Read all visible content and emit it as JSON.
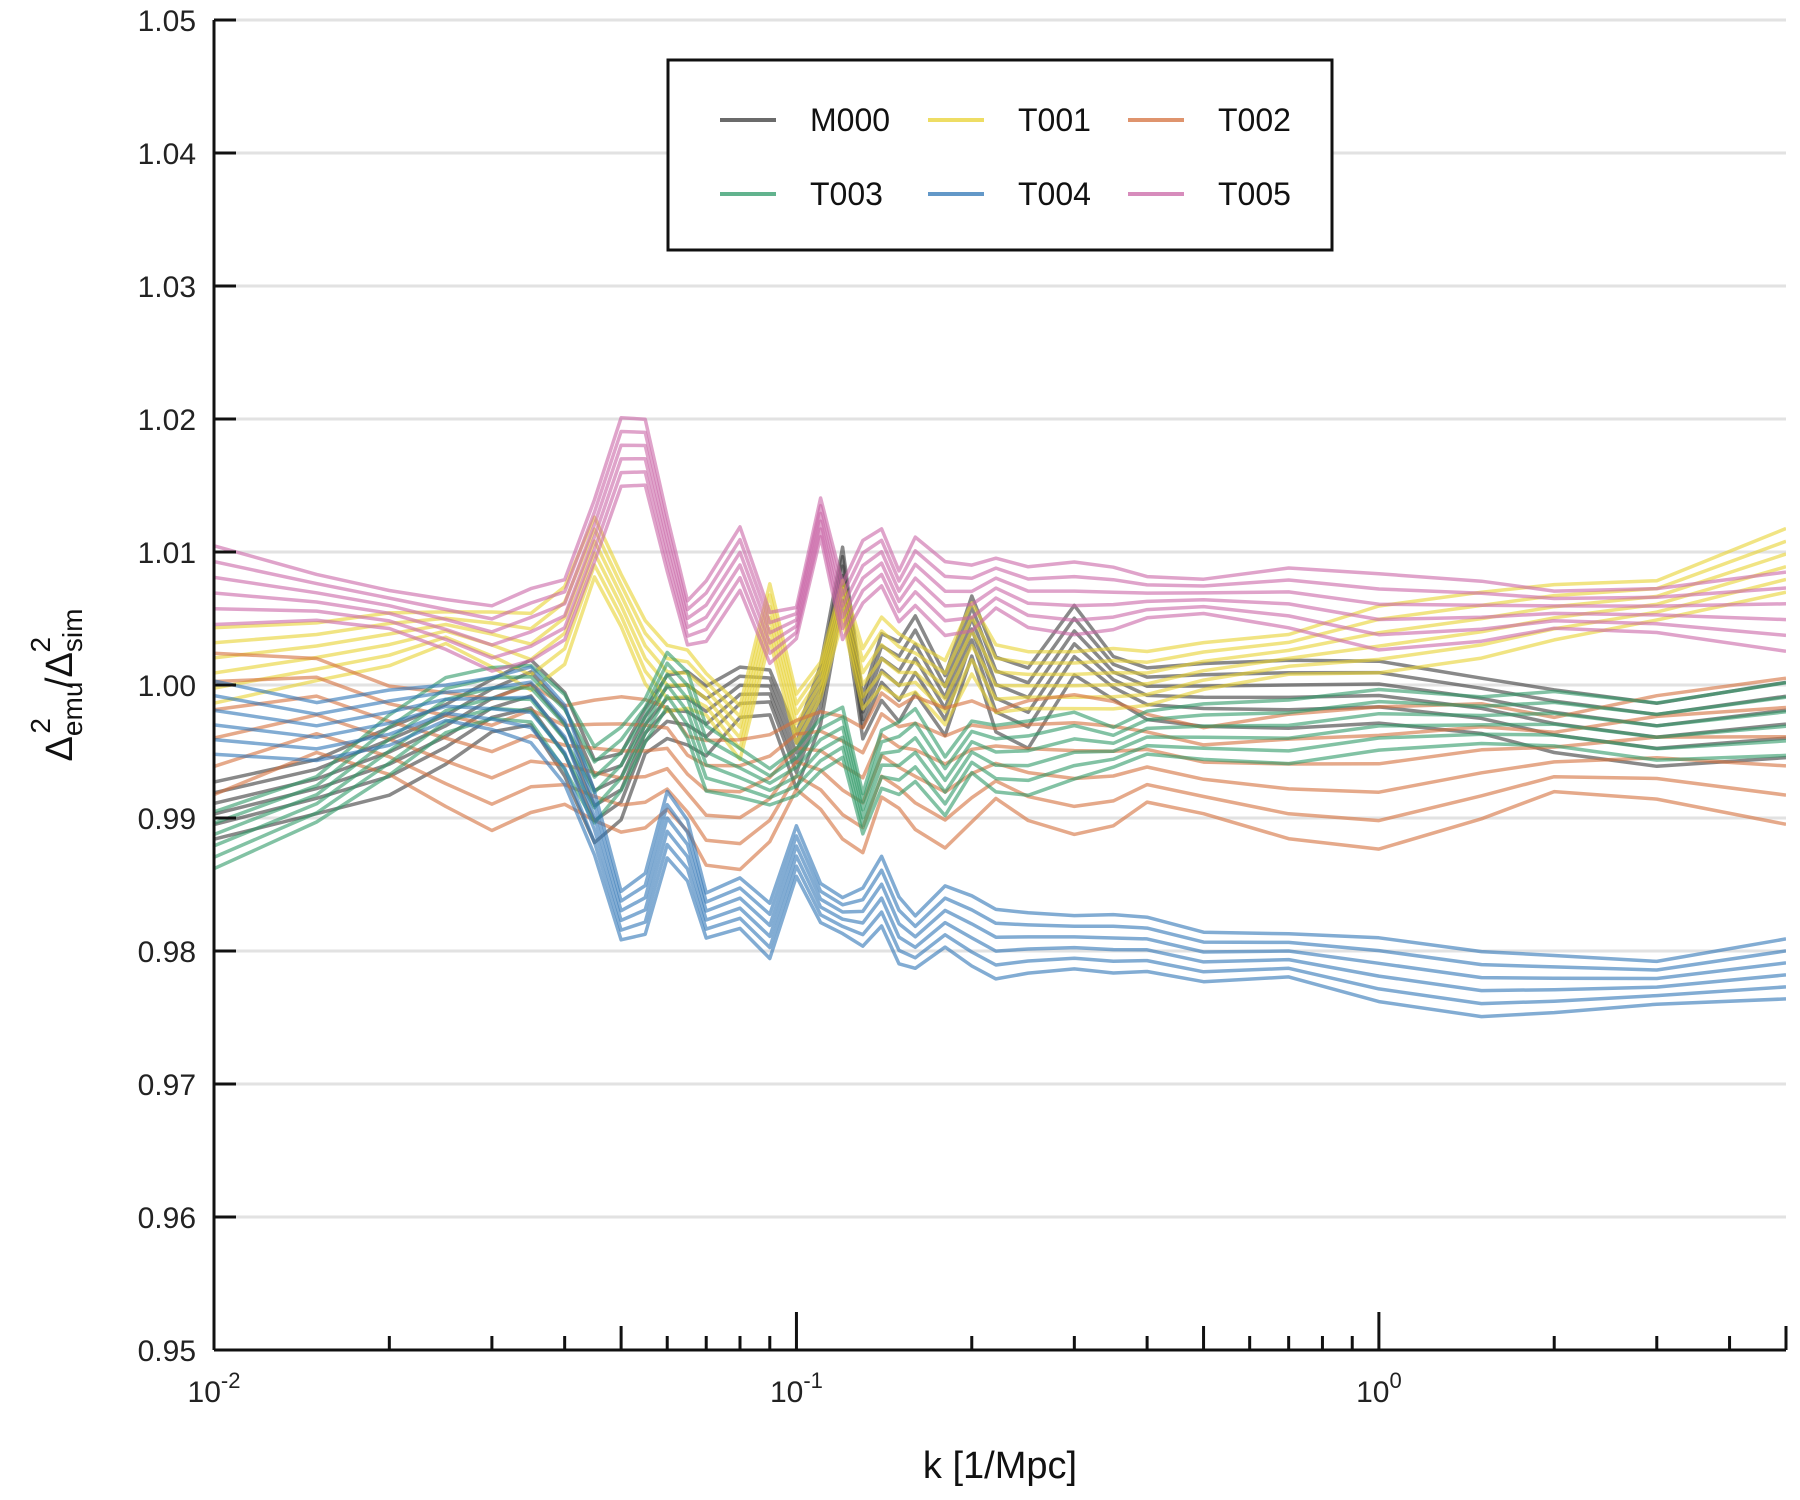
{
  "chart_data": {
    "type": "line",
    "title": "",
    "xlabel": "k [1/Mpc]",
    "ylabel": {
      "base": "Δ",
      "num_sub": "emu",
      "den_sub": "sim",
      "sup": "2",
      "sep": "/"
    },
    "x_scale": "log",
    "xlim": [
      0.01,
      5
    ],
    "ylim": [
      0.95,
      1.05
    ],
    "grid": "horizontal",
    "legend_position": "top-center",
    "y_ticks": [
      "0.95",
      "0.96",
      "0.97",
      "0.98",
      "0.99",
      "1.00",
      "1.01",
      "1.02",
      "1.03",
      "1.04",
      "1.05"
    ],
    "x_ticks": [
      {
        "value": 0.01,
        "base": "10",
        "exp": "-2"
      },
      {
        "value": 0.1,
        "base": "10",
        "exp": "-1"
      },
      {
        "value": 1,
        "base": "10",
        "exp": "0"
      }
    ],
    "x": [
      0.01,
      0.015,
      0.02,
      0.025,
      0.03,
      0.035,
      0.04,
      0.045,
      0.05,
      0.055,
      0.06,
      0.065,
      0.07,
      0.08,
      0.09,
      0.1,
      0.11,
      0.12,
      0.13,
      0.14,
      0.15,
      0.16,
      0.18,
      0.2,
      0.22,
      0.25,
      0.3,
      0.35,
      0.4,
      0.5,
      0.7,
      1.0,
      1.5,
      2.0,
      3.0,
      5.0
    ],
    "series": [
      {
        "name": "M000",
        "color": "#3a3a3a",
        "spread": [
          -0.0035,
          -0.002,
          -0.001,
          0,
          0.001,
          0.002
        ],
        "values": [
          0.991,
          0.993,
          0.995,
          0.997,
          0.999,
          1.0,
          0.997,
          0.992,
          0.993,
          0.997,
          0.999,
          0.999,
          0.998,
          1.0,
          1.0,
          0.995,
          1.0,
          1.009,
          0.998,
          1.002,
          1.001,
          1.003,
          0.999,
          1.005,
          1.0,
          0.999,
          1.004,
          1.001,
          1.0,
          1.0,
          1.0,
          1.0,
          0.999,
          0.998,
          0.997,
          0.998
        ]
      },
      {
        "name": "T001",
        "color": "#e8d230",
        "spread": [
          -0.002,
          -0.001,
          0,
          0.001,
          0.002,
          0.003
        ],
        "values": [
          1.001,
          1.002,
          1.003,
          1.004,
          1.003,
          1.002,
          1.004,
          1.01,
          1.006,
          1.002,
          1.0,
          1.0,
          0.999,
          0.996,
          1.005,
          0.997,
          1.0,
          1.006,
          1.0,
          1.002,
          1.001,
          1.001,
          0.999,
          1.003,
          1.0,
          1.0,
          1.0,
          1.0,
          1.0,
          1.001,
          1.002,
          1.003,
          1.004,
          1.005,
          1.006,
          1.009
        ]
      },
      {
        "name": "T002",
        "color": "#d4703c",
        "spread": [
          -0.007,
          -0.005,
          -0.003,
          -0.001,
          0.001,
          0.003
        ],
        "values": [
          0.999,
          1.0,
          0.998,
          0.997,
          0.996,
          0.997,
          0.996,
          0.996,
          0.996,
          0.996,
          0.996,
          0.994,
          0.993,
          0.993,
          0.994,
          0.996,
          0.996,
          0.995,
          0.994,
          0.997,
          0.996,
          0.996,
          0.995,
          0.996,
          0.996,
          0.996,
          0.996,
          0.996,
          0.996,
          0.995,
          0.995,
          0.995,
          0.996,
          0.996,
          0.997,
          0.997
        ]
      },
      {
        "name": "T003",
        "color": "#2e9a68",
        "spread": [
          -0.002,
          -0.001,
          0,
          0.001,
          0.002,
          0.003
        ],
        "values": [
          0.988,
          0.991,
          0.995,
          0.998,
          0.999,
          0.999,
          0.996,
          0.992,
          0.994,
          0.997,
          1.0,
          0.998,
          0.994,
          0.993,
          0.992,
          0.993,
          0.995,
          0.996,
          0.99,
          0.994,
          0.994,
          0.995,
          0.992,
          0.995,
          0.994,
          0.994,
          0.995,
          0.995,
          0.996,
          0.996,
          0.996,
          0.997,
          0.997,
          0.997,
          0.996,
          0.997
        ]
      },
      {
        "name": "T004",
        "color": "#2f75b5",
        "spread": [
          -0.003,
          -0.002,
          -0.001,
          0,
          0.001,
          0.002
        ],
        "values": [
          0.998,
          0.997,
          0.998,
          0.999,
          0.999,
          0.999,
          0.996,
          0.99,
          0.983,
          0.984,
          0.99,
          0.988,
          0.983,
          0.984,
          0.982,
          0.988,
          0.984,
          0.983,
          0.983,
          0.985,
          0.982,
          0.981,
          0.983,
          0.982,
          0.981,
          0.981,
          0.981,
          0.981,
          0.981,
          0.98,
          0.98,
          0.979,
          0.978,
          0.978,
          0.978,
          0.979
        ]
      },
      {
        "name": "T005",
        "color": "#c966a6",
        "spread": [
          -0.003,
          -0.002,
          -0.001,
          0,
          0.001,
          0.002
        ],
        "values": [
          1.008,
          1.007,
          1.006,
          1.005,
          1.004,
          1.005,
          1.006,
          1.012,
          1.018,
          1.018,
          1.011,
          1.005,
          1.006,
          1.01,
          1.004,
          1.005,
          1.013,
          1.006,
          1.009,
          1.01,
          1.007,
          1.009,
          1.007,
          1.007,
          1.008,
          1.007,
          1.007,
          1.007,
          1.007,
          1.007,
          1.007,
          1.006,
          1.006,
          1.006,
          1.006,
          1.006
        ]
      }
    ]
  }
}
